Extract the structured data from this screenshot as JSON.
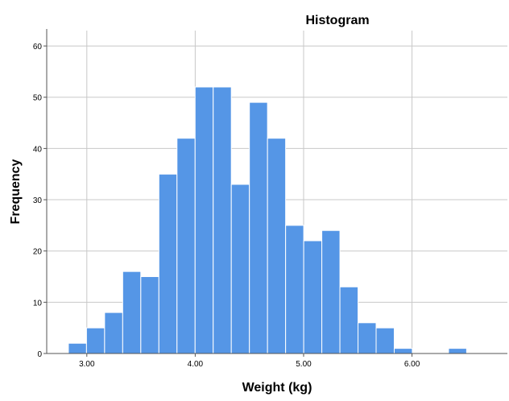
{
  "chart_data": {
    "type": "bar",
    "title": "Histogram",
    "xlabel": "Weight (kg)",
    "ylabel": "Frequency",
    "bin_width": 0.167,
    "bin_start": 2.83,
    "values": [
      2,
      5,
      8,
      16,
      15,
      35,
      42,
      52,
      52,
      33,
      49,
      42,
      25,
      22,
      24,
      13,
      6,
      5,
      1,
      0,
      0,
      1
    ],
    "x_ticks": [
      3.0,
      4.0,
      5.0,
      6.0
    ],
    "x_tick_labels": [
      "3.00",
      "4.00",
      "5.00",
      "6.00"
    ],
    "y_ticks": [
      0,
      10,
      20,
      30,
      40,
      50,
      60
    ],
    "y_tick_labels": [
      "0",
      "10",
      "20",
      "30",
      "40",
      "50",
      "60"
    ],
    "xlim": [
      2.63,
      6.88
    ],
    "ylim": [
      0,
      63
    ],
    "grid": true,
    "colors": {
      "bar": "#5596e6",
      "grid": "#c8c8c8"
    }
  }
}
